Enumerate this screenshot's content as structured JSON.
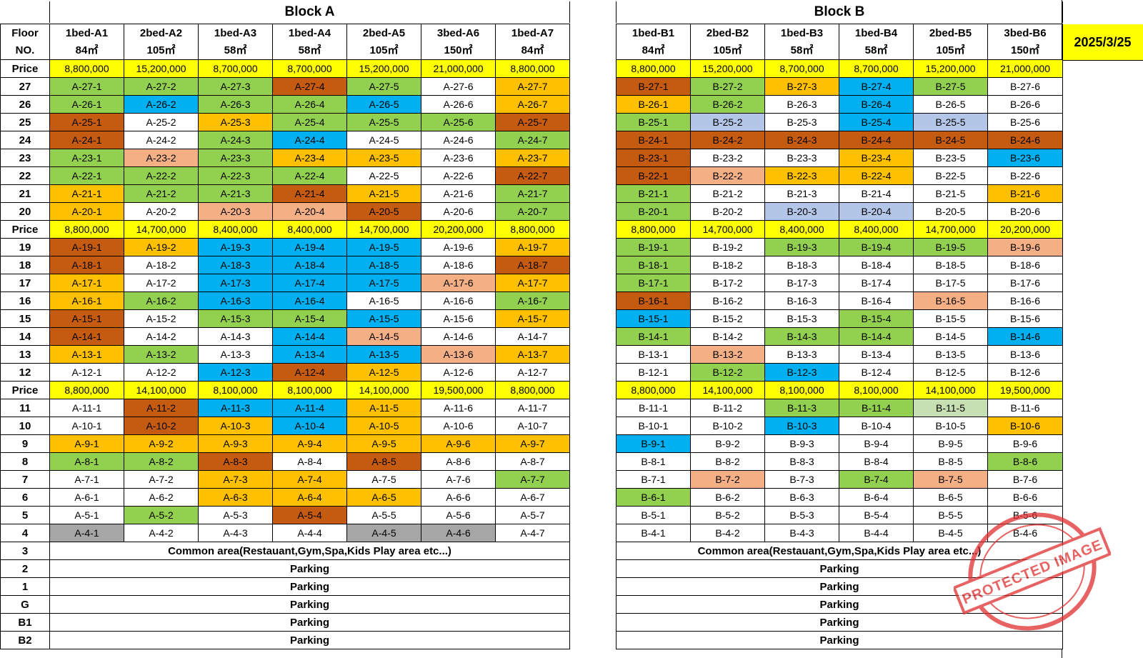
{
  "date": "2025/3/25",
  "colors": {
    "G": "#92d050",
    "L": "#00b0f0",
    "O": "#ffc000",
    "R": "#c55a11",
    "S": "#f4b084",
    "V": "#b4c6e7",
    "X": "#a6a6a6",
    "P": "#c6e0b4",
    "W": "#ffffff",
    "price": "#ffff00"
  },
  "blockA": {
    "title": "Block A",
    "floor_header": [
      "Floor",
      "NO."
    ],
    "units": [
      {
        "name": "1bed-A1",
        "area": "84㎡"
      },
      {
        "name": "2bed-A2",
        "area": "105㎡"
      },
      {
        "name": "1bed-A3",
        "area": "58㎡"
      },
      {
        "name": "1bed-A4",
        "area": "58㎡"
      },
      {
        "name": "2bed-A5",
        "area": "105㎡"
      },
      {
        "name": "3bed-A6",
        "area": "150㎡"
      },
      {
        "name": "1bed-A7",
        "area": "84㎡"
      }
    ],
    "rows": [
      {
        "type": "price",
        "label": "Price",
        "values": [
          "8,800,000",
          "15,200,000",
          "8,700,000",
          "8,700,000",
          "15,200,000",
          "21,000,000",
          "8,800,000"
        ]
      },
      {
        "floor": "27",
        "cells": [
          "A-27-1",
          "A-27-2",
          "A-27-3",
          "A-27-4",
          "A-27-5",
          "A-27-6",
          "A-27-7"
        ],
        "status": "GGGRGWO"
      },
      {
        "floor": "26",
        "cells": [
          "A-26-1",
          "A-26-2",
          "A-26-3",
          "A-26-4",
          "A-26-5",
          "A-26-6",
          "A-26-7"
        ],
        "status": "GLGGLWO"
      },
      {
        "floor": "25",
        "cells": [
          "A-25-1",
          "A-25-2",
          "A-25-3",
          "A-25-4",
          "A-25-5",
          "A-25-6",
          "A-25-7"
        ],
        "status": "RWOGGGR"
      },
      {
        "floor": "24",
        "cells": [
          "A-24-1",
          "A-24-2",
          "A-24-3",
          "A-24-4",
          "A-24-5",
          "A-24-6",
          "A-24-7"
        ],
        "status": "RWGLWWG"
      },
      {
        "floor": "23",
        "cells": [
          "A-23-1",
          "A-23-2",
          "A-23-3",
          "A-23-4",
          "A-23-5",
          "A-23-6",
          "A-23-7"
        ],
        "status": "GSGOOWO"
      },
      {
        "floor": "22",
        "cells": [
          "A-22-1",
          "A-22-2",
          "A-22-3",
          "A-22-4",
          "A-22-5",
          "A-22-6",
          "A-22-7"
        ],
        "status": "GGGGWWR"
      },
      {
        "floor": "21",
        "cells": [
          "A-21-1",
          "A-21-2",
          "A-21-3",
          "A-21-4",
          "A-21-5",
          "A-21-6",
          "A-21-7"
        ],
        "status": "OGGROWG"
      },
      {
        "floor": "20",
        "cells": [
          "A-20-1",
          "A-20-2",
          "A-20-3",
          "A-20-4",
          "A-20-5",
          "A-20-6",
          "A-20-7"
        ],
        "status": "OWSSRWG"
      },
      {
        "type": "price",
        "label": "Price",
        "values": [
          "8,800,000",
          "14,700,000",
          "8,400,000",
          "8,400,000",
          "14,700,000",
          "20,200,000",
          "8,800,000"
        ]
      },
      {
        "floor": "19",
        "cells": [
          "A-19-1",
          "A-19-2",
          "A-19-3",
          "A-19-4",
          "A-19-5",
          "A-19-6",
          "A-19-7"
        ],
        "status": "ROLLLWO"
      },
      {
        "floor": "18",
        "cells": [
          "A-18-1",
          "A-18-2",
          "A-18-3",
          "A-18-4",
          "A-18-5",
          "A-18-6",
          "A-18-7"
        ],
        "status": "RWLLLWR"
      },
      {
        "floor": "17",
        "cells": [
          "A-17-1",
          "A-17-2",
          "A-17-3",
          "A-17-4",
          "A-17-5",
          "A-17-6",
          "A-17-7"
        ],
        "status": "OWLLLSO"
      },
      {
        "floor": "16",
        "cells": [
          "A-16-1",
          "A-16-2",
          "A-16-3",
          "A-16-4",
          "A-16-5",
          "A-16-6",
          "A-16-7"
        ],
        "status": "OGLLWWG"
      },
      {
        "floor": "15",
        "cells": [
          "A-15-1",
          "A-15-2",
          "A-15-3",
          "A-15-4",
          "A-15-5",
          "A-15-6",
          "A-15-7"
        ],
        "status": "RWGGLWO"
      },
      {
        "floor": "14",
        "cells": [
          "A-14-1",
          "A-14-2",
          "A-14-3",
          "A-14-4",
          "A-14-5",
          "A-14-6",
          "A-14-7"
        ],
        "status": "RWWLSWW"
      },
      {
        "floor": "13",
        "cells": [
          "A-13-1",
          "A-13-2",
          "A-13-3",
          "A-13-4",
          "A-13-5",
          "A-13-6",
          "A-13-7"
        ],
        "status": "OGWLLSO"
      },
      {
        "floor": "12",
        "cells": [
          "A-12-1",
          "A-12-2",
          "A-12-3",
          "A-12-4",
          "A-12-5",
          "A-12-6",
          "A-12-7"
        ],
        "status": "WWLROWW"
      },
      {
        "type": "price",
        "label": "Price",
        "values": [
          "8,800,000",
          "14,100,000",
          "8,100,000",
          "8,100,000",
          "14,100,000",
          "19,500,000",
          "8,800,000"
        ]
      },
      {
        "floor": "11",
        "cells": [
          "A-11-1",
          "A-11-2",
          "A-11-3",
          "A-11-4",
          "A-11-5",
          "A-11-6",
          "A-11-7"
        ],
        "status": "WRLLOWW"
      },
      {
        "floor": "10",
        "cells": [
          "A-10-1",
          "A-10-2",
          "A-10-3",
          "A-10-4",
          "A-10-5",
          "A-10-6",
          "A-10-7"
        ],
        "status": "WROLOWW"
      },
      {
        "floor": "9",
        "cells": [
          "A-9-1",
          "A-9-2",
          "A-9-3",
          "A-9-4",
          "A-9-5",
          "A-9-6",
          "A-9-7"
        ],
        "status": "OOOOOOO"
      },
      {
        "floor": "8",
        "cells": [
          "A-8-1",
          "A-8-2",
          "A-8-3",
          "A-8-4",
          "A-8-5",
          "A-8-6",
          "A-8-7"
        ],
        "status": "GGRWRWW"
      },
      {
        "floor": "7",
        "cells": [
          "A-7-1",
          "A-7-2",
          "A-7-3",
          "A-7-4",
          "A-7-5",
          "A-7-6",
          "A-7-7"
        ],
        "status": "WWOOWWG"
      },
      {
        "floor": "6",
        "cells": [
          "A-6-1",
          "A-6-2",
          "A-6-3",
          "A-6-4",
          "A-6-5",
          "A-6-6",
          "A-6-7"
        ],
        "status": "WWOOOWW"
      },
      {
        "floor": "5",
        "cells": [
          "A-5-1",
          "A-5-2",
          "A-5-3",
          "A-5-4",
          "A-5-5",
          "A-5-6",
          "A-5-7"
        ],
        "status": "WGWRWWW"
      },
      {
        "floor": "4",
        "cells": [
          "A-4-1",
          "A-4-2",
          "A-4-3",
          "A-4-4",
          "A-4-5",
          "A-4-6",
          "A-4-7"
        ],
        "status": "XWWWXXW"
      },
      {
        "type": "span",
        "floor": "3",
        "text": "Common area(Restauant,Gym,Spa,Kids Play area etc...)"
      },
      {
        "type": "span",
        "floor": "2",
        "text": "Parking"
      },
      {
        "type": "span",
        "floor": "1",
        "text": "Parking"
      },
      {
        "type": "span",
        "floor": "G",
        "text": "Parking"
      },
      {
        "type": "span",
        "floor": "B1",
        "text": "Parking"
      },
      {
        "type": "span",
        "floor": "B2",
        "text": "Parking"
      }
    ]
  },
  "blockB": {
    "title": "Block B",
    "units": [
      {
        "name": "1bed-B1",
        "area": "84㎡"
      },
      {
        "name": "2bed-B2",
        "area": "105㎡"
      },
      {
        "name": "1bed-B3",
        "area": "58㎡"
      },
      {
        "name": "1bed-B4",
        "area": "58㎡"
      },
      {
        "name": "2bed-B5",
        "area": "105㎡"
      },
      {
        "name": "3bed-B6",
        "area": "150㎡"
      }
    ],
    "rows": [
      {
        "type": "price",
        "values": [
          "8,800,000",
          "15,200,000",
          "8,700,000",
          "8,700,000",
          "15,200,000",
          "21,000,000"
        ]
      },
      {
        "cells": [
          "B-27-1",
          "B-27-2",
          "B-27-3",
          "B-27-4",
          "B-27-5",
          "B-27-6"
        ],
        "status": "RGOLGW"
      },
      {
        "cells": [
          "B-26-1",
          "B-26-2",
          "B-26-3",
          "B-26-4",
          "B-26-5",
          "B-26-6"
        ],
        "status": "OGWLWW"
      },
      {
        "cells": [
          "B-25-1",
          "B-25-2",
          "B-25-3",
          "B-25-4",
          "B-25-5",
          "B-25-6"
        ],
        "status": "GVWLVW"
      },
      {
        "cells": [
          "B-24-1",
          "B-24-2",
          "B-24-3",
          "B-24-4",
          "B-24-5",
          "B-24-6"
        ],
        "status": "RRRRRR"
      },
      {
        "cells": [
          "B-23-1",
          "B-23-2",
          "B-23-3",
          "B-23-4",
          "B-23-5",
          "B-23-6"
        ],
        "status": "RWWOWL"
      },
      {
        "cells": [
          "B-22-1",
          "B-22-2",
          "B-22-3",
          "B-22-4",
          "B-22-5",
          "B-22-6"
        ],
        "status": "RSOOWW"
      },
      {
        "cells": [
          "B-21-1",
          "B-21-2",
          "B-21-3",
          "B-21-4",
          "B-21-5",
          "B-21-6"
        ],
        "status": "GWWWWO"
      },
      {
        "cells": [
          "B-20-1",
          "B-20-2",
          "B-20-3",
          "B-20-4",
          "B-20-5",
          "B-20-6"
        ],
        "status": "GWVVWW"
      },
      {
        "type": "price",
        "values": [
          "8,800,000",
          "14,700,000",
          "8,400,000",
          "8,400,000",
          "14,700,000",
          "20,200,000"
        ]
      },
      {
        "cells": [
          "B-19-1",
          "B-19-2",
          "B-19-3",
          "B-19-4",
          "B-19-5",
          "B-19-6"
        ],
        "status": "GWGGGS"
      },
      {
        "cells": [
          "B-18-1",
          "B-18-2",
          "B-18-3",
          "B-18-4",
          "B-18-5",
          "B-18-6"
        ],
        "status": "GWWWWW"
      },
      {
        "cells": [
          "B-17-1",
          "B-17-2",
          "B-17-3",
          "B-17-4",
          "B-17-5",
          "B-17-6"
        ],
        "status": "GWWWWW"
      },
      {
        "cells": [
          "B-16-1",
          "B-16-2",
          "B-16-3",
          "B-16-4",
          "B-16-5",
          "B-16-6"
        ],
        "status": "RWWWSW"
      },
      {
        "cells": [
          "B-15-1",
          "B-15-2",
          "B-15-3",
          "B-15-4",
          "B-15-5",
          "B-15-6"
        ],
        "status": "LWWGWW"
      },
      {
        "cells": [
          "B-14-1",
          "B-14-2",
          "B-14-3",
          "B-14-4",
          "B-14-5",
          "B-14-6"
        ],
        "status": "GWGGWL"
      },
      {
        "cells": [
          "B-13-1",
          "B-13-2",
          "B-13-3",
          "B-13-4",
          "B-13-5",
          "B-13-6"
        ],
        "status": "WSWWWW"
      },
      {
        "cells": [
          "B-12-1",
          "B-12-2",
          "B-12-3",
          "B-12-4",
          "B-12-5",
          "B-12-6"
        ],
        "status": "WGLWWW"
      },
      {
        "type": "price",
        "values": [
          "8,800,000",
          "14,100,000",
          "8,100,000",
          "8,100,000",
          "14,100,000",
          "19,500,000"
        ]
      },
      {
        "cells": [
          "B-11-1",
          "B-11-2",
          "B-11-3",
          "B-11-4",
          "B-11-5",
          "B-11-6"
        ],
        "status": "WWGGPW"
      },
      {
        "cells": [
          "B-10-1",
          "B-10-2",
          "B-10-3",
          "B-10-4",
          "B-10-5",
          "B-10-6"
        ],
        "status": "WWLWWO"
      },
      {
        "cells": [
          "B-9-1",
          "B-9-2",
          "B-9-3",
          "B-9-4",
          "B-9-5",
          "B-9-6"
        ],
        "status": "LWWWWW"
      },
      {
        "cells": [
          "B-8-1",
          "B-8-2",
          "B-8-3",
          "B-8-4",
          "B-8-5",
          "B-8-6"
        ],
        "status": "WWWWWG"
      },
      {
        "cells": [
          "B-7-1",
          "B-7-2",
          "B-7-3",
          "B-7-4",
          "B-7-5",
          "B-7-6"
        ],
        "status": "WSWGSW"
      },
      {
        "cells": [
          "B-6-1",
          "B-6-2",
          "B-6-3",
          "B-6-4",
          "B-6-5",
          "B-6-6"
        ],
        "status": "GWWWWW"
      },
      {
        "cells": [
          "B-5-1",
          "B-5-2",
          "B-5-3",
          "B-5-4",
          "B-5-5",
          "B-5-6"
        ],
        "status": "WWWWWW"
      },
      {
        "cells": [
          "B-4-1",
          "B-4-2",
          "B-4-3",
          "B-4-4",
          "B-4-5",
          "B-4-6"
        ],
        "status": "WWWWWW"
      },
      {
        "type": "span",
        "text": "Common area(Restauant,Gym,Spa,Kids Play area etc...)"
      },
      {
        "type": "span",
        "text": "Parking"
      },
      {
        "type": "span",
        "text": "Parking"
      },
      {
        "type": "span",
        "text": "Parking"
      },
      {
        "type": "span",
        "text": "Parking"
      },
      {
        "type": "span",
        "text": "Parking"
      }
    ]
  },
  "watermark": {
    "stamp_text": "PROTECTED IMAGE"
  }
}
